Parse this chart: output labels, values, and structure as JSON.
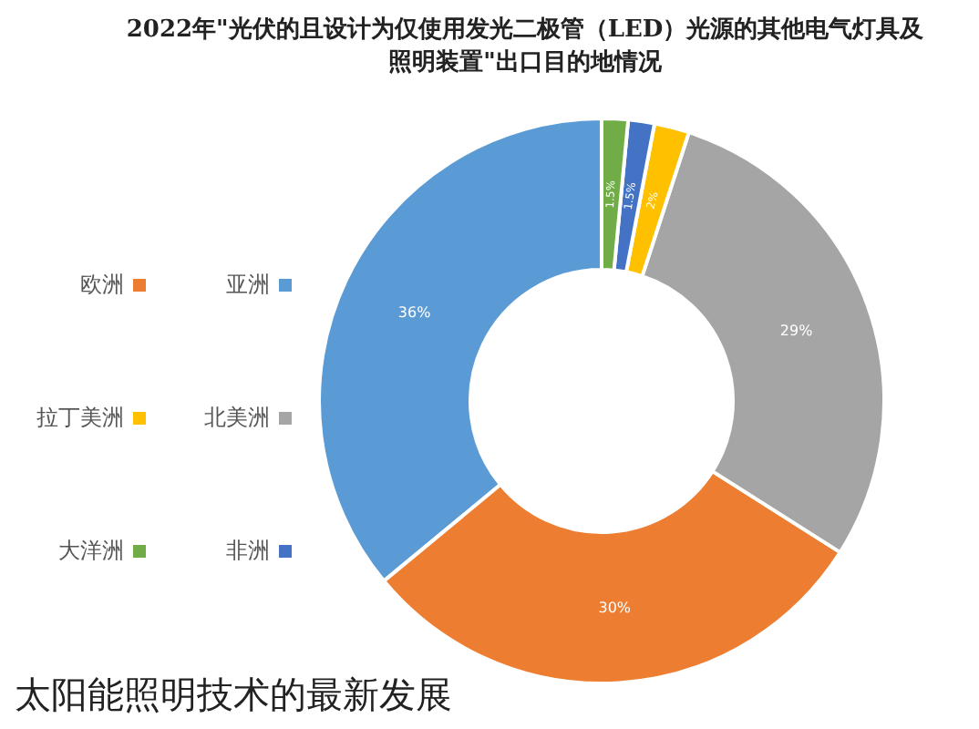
{
  "chart_data": {
    "type": "donut",
    "title": "2022年\"光伏的且设计为仅使用发光二极管（LED）光源的其他电气灯具及照明装置\"出口目的地情况",
    "categories": [
      "亚洲",
      "欧洲",
      "北美洲",
      "拉丁美洲",
      "非洲",
      "大洋洲"
    ],
    "values": [
      36,
      30,
      29,
      2,
      1.5,
      1.5
    ],
    "colors": [
      "#5b9bd5",
      "#ed7d31",
      "#a5a5a5",
      "#ffc000",
      "#4472c4",
      "#70ad47"
    ],
    "value_labels": [
      "36%",
      "30%",
      "29%",
      "2%",
      "1.5%",
      "1.5%"
    ],
    "legend": "left",
    "annotations": [
      "太阳能照明技术的最新发展"
    ]
  }
}
